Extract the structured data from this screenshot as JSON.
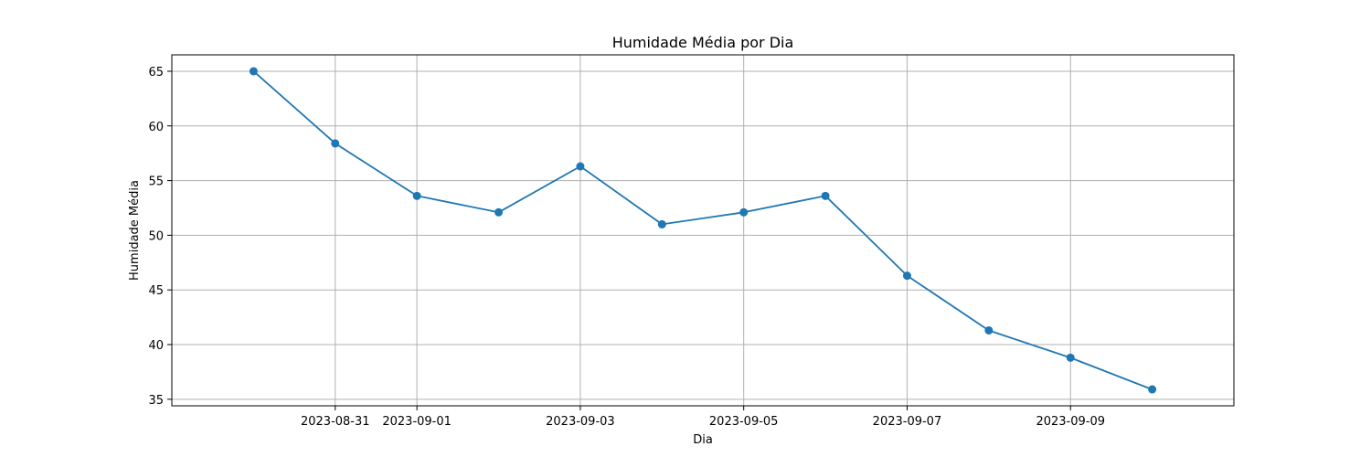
{
  "chart_data": {
    "type": "line",
    "title": "Humidade Média por Dia",
    "xlabel": "Dia",
    "ylabel": "Humidade Média",
    "x": [
      "2023-08-30",
      "2023-08-31",
      "2023-09-01",
      "2023-09-02",
      "2023-09-03",
      "2023-09-04",
      "2023-09-05",
      "2023-09-06",
      "2023-09-07",
      "2023-09-08",
      "2023-09-09",
      "2023-09-10"
    ],
    "series": [
      {
        "values": [
          65.0,
          58.4,
          53.6,
          52.1,
          56.3,
          51.0,
          52.1,
          53.6,
          46.3,
          41.3,
          38.8,
          35.9
        ],
        "color": "#1f77b4",
        "marker": "circle"
      }
    ],
    "xticks": [
      "2023-08-31",
      "2023-09-01",
      "2023-09-03",
      "2023-09-05",
      "2023-09-07",
      "2023-09-09"
    ],
    "yticks": [
      35,
      40,
      45,
      50,
      55,
      60,
      65
    ],
    "ylim": [
      34.4,
      66.5
    ],
    "xlim": [
      "2023-08-29",
      "2023-09-11"
    ],
    "grid": true
  }
}
